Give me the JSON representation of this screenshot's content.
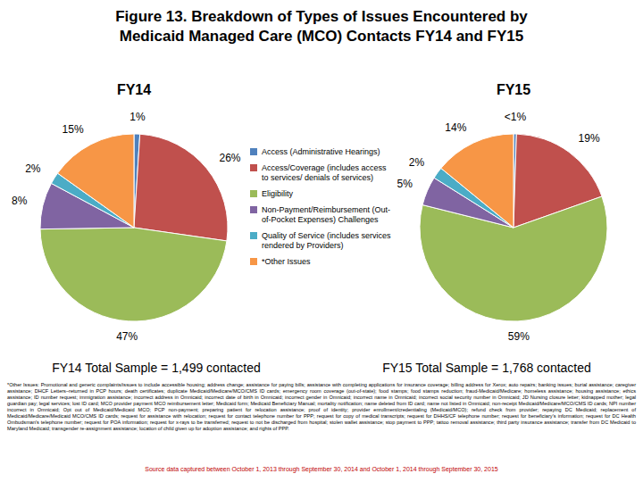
{
  "chart_data": {
    "type": "pie",
    "title": "Figure 13. Breakdown of Types of Issues Encountered by Medicaid Managed Care (MCO) Contacts FY14 and FY15",
    "categories": [
      "Access (Administrative Hearings)",
      "Access/Coverage (includes access to services/ denials of services)",
      "Eligibility",
      "Non-Payment/Reimbursement (Out-of-Pocket Expenses) Challenges",
      "Quality of Service (includes services rendered by Providers)",
      "*Other Issues"
    ],
    "colors": [
      "#4f81bd",
      "#c0504d",
      "#9bbb59",
      "#8064a2",
      "#4bacc6",
      "#f79646"
    ],
    "series": [
      {
        "name": "FY14",
        "values": [
          1,
          26,
          47,
          8,
          2,
          15
        ],
        "value_labels": [
          "1%",
          "26%",
          "47%",
          "8%",
          "2%",
          "15%"
        ]
      },
      {
        "name": "FY15",
        "values": [
          0.5,
          19,
          59,
          5,
          2,
          14
        ],
        "value_labels": [
          "<1%",
          "19%",
          "59%",
          "5%",
          "2%",
          "14%"
        ]
      }
    ],
    "data_labels": true,
    "annotations": [
      "FY14 Total Sample = 1,499 contacted",
      "FY15 Total Sample = 1,768 contacted"
    ]
  },
  "notes": {
    "footnote": "*Other Issues: Promotional and generic complaints/issues to include accessible housing; address change; assistance for paying bills; assistance with completing applications for insurance coverage; billing address for Xerox; auto repairs; banking issues; burial assistance; caregiver assistance; DHCF Letters–returned in PCP hours; death certificates; duplicate Medicaid/Medicare/MCO/CMS ID cards; emergency room coverage (out-of-state); food stamps; food stamps reduction; fraud-Medicaid/Medicare; homeless assistance; housing assistance; ethics assistance; ID number request; immigration assistance; incorrect address in Omnicaid; incorrect date of birth in Omnicaid; incorrect gender in Omnicaid; incorrect name in Omnicaid; incorrect social security number in Omnicaid; JD Nursing closure letter; kidnapped mother; legal guardian pay; legal services; lost ID card; MCO provider payment MCO reimbursement letter; Medicaid form; Medicaid Beneficiary Manual; mortality notification; name deleted from ID card; name not listed in Omnicaid; non-receipt Medicaid/Medicare/MCO/CMS ID cards; NPI number incorrect in Omnicaid; Opt out of Medicaid/Medicaid MCO; PCP non-payment; preparing patient for relocation assistance; proof of identity; provider enrollment/credentialing (Medicaid/MCO); refund check from provider; repaying DC Medicaid; replacement of Medicaid/Medicare/Medicaid MCO/CMS ID cards; request for assistance with relocation; request for contact telephone number for PPP; request for copy of medical transcripts; request for DHHS/CF telephone number; request for beneficiary's information; request for DC Health Ombudsman's telephone number; request for POA information; request for x-rays to be transferred; request to not be discharged from hospital; stolen wallet assistance; stop payment to PPP; tattoo removal assistance; third party insurance assistance; transfer from DC Medicaid to Maryland Medicaid; transgender re-assignment assistance; location of child given up for adoption assistance; and rights of PPP.",
    "source": "Source data captured between October 1, 2013 through September 30, 2014 and October 1, 2014 through September 30, 2015"
  }
}
